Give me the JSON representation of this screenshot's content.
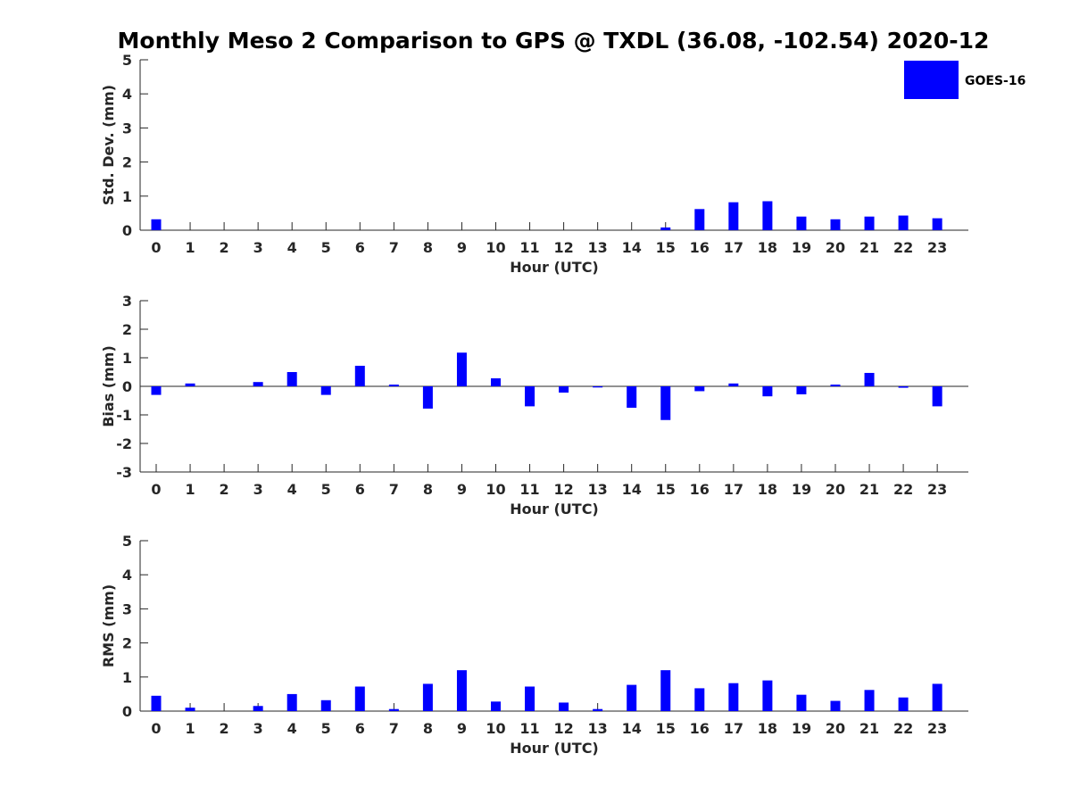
{
  "title": "Monthly Meso 2 Comparison to GPS @ TXDL (36.08, -102.54) 2020-12",
  "colors": {
    "bar": "#0000ff",
    "axis": "#262626"
  },
  "legend": {
    "label": "GOES-16",
    "placement": "top-right"
  },
  "chart_data": [
    {
      "type": "bar",
      "title": "",
      "xlabel": "Hour (UTC)",
      "ylabel": "Std. Dev. (mm)",
      "categories": [
        "0",
        "1",
        "2",
        "3",
        "4",
        "5",
        "6",
        "7",
        "8",
        "9",
        "10",
        "11",
        "12",
        "13",
        "14",
        "15",
        "16",
        "17",
        "18",
        "19",
        "20",
        "21",
        "22",
        "23"
      ],
      "ylim": [
        0,
        5
      ],
      "yticks": [
        0,
        1,
        2,
        3,
        4,
        5
      ],
      "grid": false,
      "series": [
        {
          "name": "GOES-16",
          "values": [
            0.32,
            0,
            0,
            0,
            0,
            0,
            0,
            0,
            0,
            0,
            0,
            0,
            0,
            0,
            0,
            0.08,
            0.62,
            0.82,
            0.85,
            0.4,
            0.32,
            0.4,
            0.43,
            0.35
          ]
        }
      ]
    },
    {
      "type": "bar",
      "title": "",
      "xlabel": "Hour (UTC)",
      "ylabel": "Bias (mm)",
      "categories": [
        "0",
        "1",
        "2",
        "3",
        "4",
        "5",
        "6",
        "7",
        "8",
        "9",
        "10",
        "11",
        "12",
        "13",
        "14",
        "15",
        "16",
        "17",
        "18",
        "19",
        "20",
        "21",
        "22",
        "23"
      ],
      "ylim": [
        -3,
        3
      ],
      "yticks": [
        -3,
        -2,
        -1,
        0,
        1,
        2,
        3
      ],
      "grid": false,
      "series": [
        {
          "name": "GOES-16",
          "values": [
            -0.3,
            0.1,
            0,
            0.15,
            0.5,
            -0.3,
            0.72,
            0.06,
            -0.78,
            1.18,
            0.28,
            -0.7,
            -0.22,
            -0.04,
            -0.75,
            -1.18,
            -0.17,
            0.1,
            -0.35,
            -0.28,
            0.06,
            0.47,
            -0.05,
            -0.7
          ]
        }
      ]
    },
    {
      "type": "bar",
      "title": "",
      "xlabel": "Hour (UTC)",
      "ylabel": "RMS (mm)",
      "categories": [
        "0",
        "1",
        "2",
        "3",
        "4",
        "5",
        "6",
        "7",
        "8",
        "9",
        "10",
        "11",
        "12",
        "13",
        "14",
        "15",
        "16",
        "17",
        "18",
        "19",
        "20",
        "21",
        "22",
        "23"
      ],
      "ylim": [
        0,
        5
      ],
      "yticks": [
        0,
        1,
        2,
        3,
        4,
        5
      ],
      "grid": false,
      "series": [
        {
          "name": "GOES-16",
          "values": [
            0.45,
            0.1,
            0,
            0.15,
            0.5,
            0.32,
            0.72,
            0.06,
            0.8,
            1.2,
            0.28,
            0.72,
            0.25,
            0.06,
            0.77,
            1.2,
            0.67,
            0.82,
            0.9,
            0.48,
            0.3,
            0.62,
            0.4,
            0.8
          ]
        }
      ]
    }
  ]
}
